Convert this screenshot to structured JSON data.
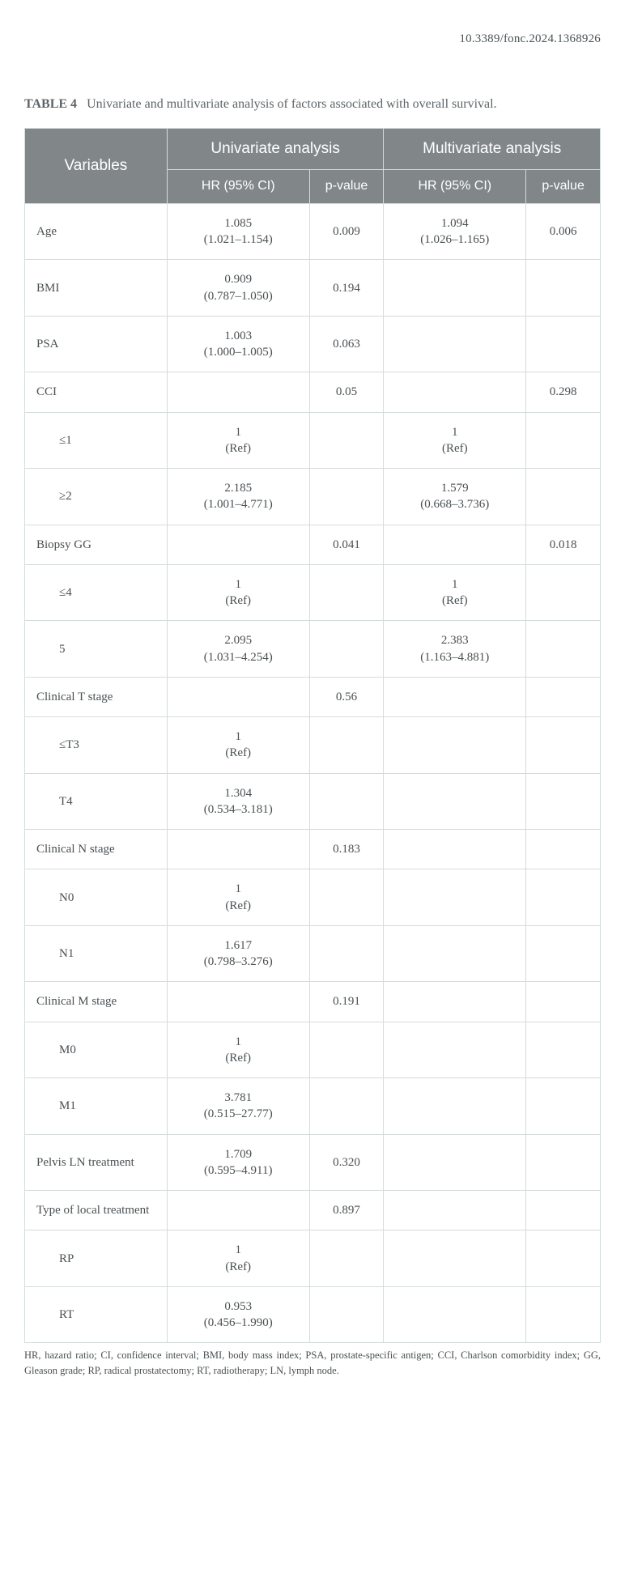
{
  "doi": "10.3389/fonc.2024.1368926",
  "caption_label": "TABLE 4",
  "caption_text": "Univariate and multivariate analysis of factors associated with overall survival.",
  "header": {
    "variables": "Variables",
    "univariate": "Univariate analysis",
    "multivariate": "Multivariate analysis",
    "hr": "HR (95% CI)",
    "p": "p-value"
  },
  "rows": [
    {
      "var": "Age",
      "indent": false,
      "u_hr": "1.085 (1.021–1.154)",
      "u_p": "0.009",
      "m_hr": "1.094 (1.026–1.165)",
      "m_p": "0.006"
    },
    {
      "var": "BMI",
      "indent": false,
      "u_hr": "0.909 (0.787–1.050)",
      "u_p": "0.194",
      "m_hr": "",
      "m_p": ""
    },
    {
      "var": "PSA",
      "indent": false,
      "u_hr": "1.003 (1.000–1.005)",
      "u_p": "0.063",
      "m_hr": "",
      "m_p": ""
    },
    {
      "var": "CCI",
      "indent": false,
      "u_hr": "",
      "u_p": "0.05",
      "m_hr": "",
      "m_p": "0.298"
    },
    {
      "var": "≤1",
      "indent": true,
      "u_hr": "1 (Ref)",
      "u_p": "",
      "m_hr": "1 (Ref)",
      "m_p": ""
    },
    {
      "var": "≥2",
      "indent": true,
      "u_hr": "2.185 (1.001–4.771)",
      "u_p": "",
      "m_hr": "1.579 (0.668–3.736)",
      "m_p": ""
    },
    {
      "var": "Biopsy GG",
      "indent": false,
      "u_hr": "",
      "u_p": "0.041",
      "m_hr": "",
      "m_p": "0.018"
    },
    {
      "var": "≤4",
      "indent": true,
      "u_hr": "1 (Ref)",
      "u_p": "",
      "m_hr": "1 (Ref)",
      "m_p": ""
    },
    {
      "var": "5",
      "indent": true,
      "u_hr": "2.095 (1.031–4.254)",
      "u_p": "",
      "m_hr": "2.383 (1.163–4.881)",
      "m_p": ""
    },
    {
      "var": "Clinical T stage",
      "indent": false,
      "u_hr": "",
      "u_p": "0.56",
      "m_hr": "",
      "m_p": ""
    },
    {
      "var": "≤T3",
      "indent": true,
      "u_hr": "1 (Ref)",
      "u_p": "",
      "m_hr": "",
      "m_p": ""
    },
    {
      "var": "T4",
      "indent": true,
      "u_hr": "1.304 (0.534–3.181)",
      "u_p": "",
      "m_hr": "",
      "m_p": ""
    },
    {
      "var": "Clinical N stage",
      "indent": false,
      "u_hr": "",
      "u_p": "0.183",
      "m_hr": "",
      "m_p": ""
    },
    {
      "var": "N0",
      "indent": true,
      "u_hr": "1 (Ref)",
      "u_p": "",
      "m_hr": "",
      "m_p": ""
    },
    {
      "var": "N1",
      "indent": true,
      "u_hr": "1.617 (0.798–3.276)",
      "u_p": "",
      "m_hr": "",
      "m_p": ""
    },
    {
      "var": "Clinical M stage",
      "indent": false,
      "u_hr": "",
      "u_p": "0.191",
      "m_hr": "",
      "m_p": ""
    },
    {
      "var": "M0",
      "indent": true,
      "u_hr": "1 (Ref)",
      "u_p": "",
      "m_hr": "",
      "m_p": ""
    },
    {
      "var": "M1",
      "indent": true,
      "u_hr": "3.781 (0.515–27.77)",
      "u_p": "",
      "m_hr": "",
      "m_p": ""
    },
    {
      "var": "Pelvis LN treatment",
      "indent": false,
      "u_hr": "1.709 (0.595–4.911)",
      "u_p": "0.320",
      "m_hr": "",
      "m_p": ""
    },
    {
      "var": "Type of local treatment",
      "indent": false,
      "u_hr": "",
      "u_p": "0.897",
      "m_hr": "",
      "m_p": ""
    },
    {
      "var": "RP",
      "indent": true,
      "u_hr": "1 (Ref)",
      "u_p": "",
      "m_hr": "",
      "m_p": ""
    },
    {
      "var": "RT",
      "indent": true,
      "u_hr": "0.953 (0.456–1.990)",
      "u_p": "",
      "m_hr": "",
      "m_p": ""
    }
  ],
  "footnote": "HR, hazard ratio; CI, confidence interval; BMI, body mass index; PSA, prostate-specific antigen; CCI, Charlson comorbidity index; GG, Gleason grade; RP, radical prostatectomy; RT, radiotherapy; LN, lymph node.",
  "style": {
    "header_bg": "#818789",
    "header_fg": "#ffffff",
    "border_color": "#d5dbdd",
    "body_text_color": "#4a5053",
    "col_widths_pct": [
      23,
      23,
      12,
      23,
      12
    ]
  }
}
